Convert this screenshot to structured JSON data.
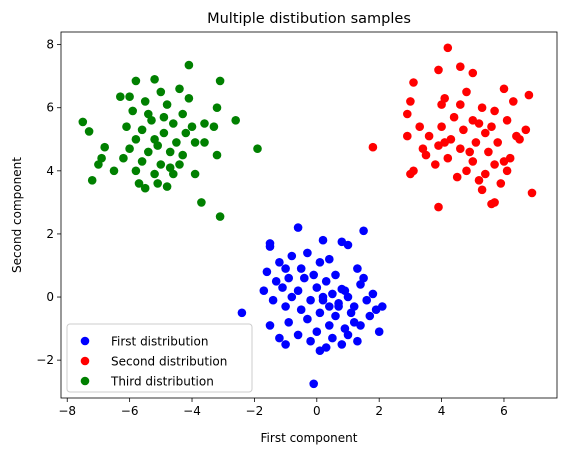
{
  "chart_data": {
    "type": "scatter",
    "title": "Multiple distibution samples",
    "xlabel": "First component",
    "ylabel": "Second component",
    "xlim": [
      -8.2,
      7.7
    ],
    "ylim": [
      -3.2,
      8.4
    ],
    "xticks": [
      -8,
      -6,
      -4,
      -2,
      0,
      2,
      4,
      6
    ],
    "yticks": [
      -2,
      0,
      2,
      4,
      6,
      8
    ],
    "grid": false,
    "legend_position": "lower-left",
    "series": [
      {
        "name": "First distribution",
        "color": "#0000ff",
        "points": [
          [
            -0.1,
            -2.75
          ],
          [
            -1.5,
            1.7
          ],
          [
            -1.5,
            1.6
          ],
          [
            -0.6,
            2.2
          ],
          [
            0.2,
            1.8
          ],
          [
            0.8,
            1.75
          ],
          [
            1.0,
            1.65
          ],
          [
            1.5,
            2.1
          ],
          [
            -1.2,
            1.1
          ],
          [
            -0.8,
            1.3
          ],
          [
            -0.3,
            1.4
          ],
          [
            0.4,
            1.2
          ],
          [
            1.3,
            0.9
          ],
          [
            -1.0,
            0.9
          ],
          [
            -0.5,
            0.9
          ],
          [
            0.1,
            1.1
          ],
          [
            0.6,
            0.7
          ],
          [
            1.4,
            0.4
          ],
          [
            -1.3,
            0.5
          ],
          [
            -0.9,
            0.6
          ],
          [
            -0.4,
            0.6
          ],
          [
            0.3,
            0.5
          ],
          [
            0.9,
            0.2
          ],
          [
            1.8,
            0.1
          ],
          [
            -1.7,
            0.2
          ],
          [
            -1.1,
            0.3
          ],
          [
            -0.6,
            0.2
          ],
          [
            0.0,
            0.3
          ],
          [
            0.5,
            0.1
          ],
          [
            1.0,
            0.0
          ],
          [
            1.6,
            -0.1
          ],
          [
            2.1,
            -0.3
          ],
          [
            -1.4,
            -0.1
          ],
          [
            -0.8,
            0.0
          ],
          [
            -0.2,
            -0.1
          ],
          [
            0.2,
            -0.1
          ],
          [
            0.7,
            -0.2
          ],
          [
            1.2,
            -0.3
          ],
          [
            1.9,
            -0.4
          ],
          [
            -2.4,
            -0.5
          ],
          [
            -1.0,
            -0.3
          ],
          [
            -0.5,
            -0.4
          ],
          [
            0.1,
            -0.5
          ],
          [
            0.6,
            -0.6
          ],
          [
            1.1,
            -0.5
          ],
          [
            1.7,
            -0.6
          ],
          [
            -1.5,
            -0.9
          ],
          [
            -0.9,
            -0.8
          ],
          [
            -0.3,
            -0.7
          ],
          [
            0.4,
            -0.9
          ],
          [
            0.9,
            -1.0
          ],
          [
            1.4,
            -0.9
          ],
          [
            2.0,
            -1.1
          ],
          [
            -1.2,
            -1.3
          ],
          [
            -0.6,
            -1.2
          ],
          [
            0.0,
            -1.1
          ],
          [
            0.5,
            -1.3
          ],
          [
            1.0,
            -1.2
          ],
          [
            -1.0,
            -1.5
          ],
          [
            -0.2,
            -1.4
          ],
          [
            0.3,
            -1.6
          ],
          [
            0.8,
            -1.5
          ],
          [
            1.3,
            -1.4
          ],
          [
            0.1,
            -1.7
          ],
          [
            0.7,
            -0.3
          ],
          [
            1.5,
            0.6
          ],
          [
            0.8,
            0.25
          ],
          [
            -0.1,
            0.7
          ],
          [
            -1.6,
            0.8
          ],
          [
            1.2,
            -0.8
          ],
          [
            0.2,
            0.0
          ],
          [
            0.4,
            -0.3
          ]
        ]
      },
      {
        "name": "Second distribution",
        "color": "#ff0000",
        "points": [
          [
            4.2,
            7.9
          ],
          [
            4.6,
            7.3
          ],
          [
            5.0,
            7.1
          ],
          [
            3.9,
            7.2
          ],
          [
            3.1,
            6.8
          ],
          [
            4.8,
            6.5
          ],
          [
            6.0,
            6.6
          ],
          [
            6.8,
            6.4
          ],
          [
            6.3,
            6.2
          ],
          [
            3.0,
            6.2
          ],
          [
            4.1,
            6.3
          ],
          [
            5.3,
            6.0
          ],
          [
            5.7,
            5.9
          ],
          [
            2.9,
            5.8
          ],
          [
            4.4,
            5.7
          ],
          [
            5.0,
            5.6
          ],
          [
            6.1,
            5.6
          ],
          [
            6.7,
            5.3
          ],
          [
            3.3,
            5.4
          ],
          [
            4.0,
            5.4
          ],
          [
            4.7,
            5.3
          ],
          [
            5.4,
            5.2
          ],
          [
            6.4,
            5.1
          ],
          [
            3.6,
            5.1
          ],
          [
            4.3,
            5.0
          ],
          [
            5.1,
            4.9
          ],
          [
            5.8,
            4.9
          ],
          [
            2.9,
            5.1
          ],
          [
            3.9,
            4.8
          ],
          [
            4.6,
            4.7
          ],
          [
            5.5,
            4.6
          ],
          [
            6.2,
            4.4
          ],
          [
            1.8,
            4.75
          ],
          [
            3.5,
            4.5
          ],
          [
            4.2,
            4.4
          ],
          [
            5.0,
            4.3
          ],
          [
            5.7,
            4.2
          ],
          [
            3.8,
            4.2
          ],
          [
            4.8,
            4.0
          ],
          [
            5.4,
            3.9
          ],
          [
            6.1,
            4.0
          ],
          [
            3.1,
            4.0
          ],
          [
            3.0,
            3.9
          ],
          [
            4.5,
            3.8
          ],
          [
            5.2,
            3.7
          ],
          [
            5.9,
            3.6
          ],
          [
            5.3,
            3.4
          ],
          [
            6.9,
            3.3
          ],
          [
            5.7,
            3.0
          ],
          [
            5.6,
            2.95
          ],
          [
            3.9,
            2.85
          ],
          [
            4.0,
            6.1
          ],
          [
            5.6,
            5.4
          ],
          [
            4.9,
            4.6
          ],
          [
            6.0,
            4.3
          ],
          [
            4.1,
            4.9
          ],
          [
            5.2,
            5.5
          ],
          [
            3.4,
            4.7
          ],
          [
            6.5,
            5.0
          ],
          [
            4.6,
            6.1
          ]
        ]
      },
      {
        "name": "Third distribution",
        "color": "#008000",
        "points": [
          [
            -4.1,
            7.35
          ],
          [
            -3.1,
            6.85
          ],
          [
            -5.8,
            6.85
          ],
          [
            -5.2,
            6.9
          ],
          [
            -4.4,
            6.6
          ],
          [
            -5.0,
            6.5
          ],
          [
            -6.0,
            6.35
          ],
          [
            -6.3,
            6.35
          ],
          [
            -4.1,
            6.3
          ],
          [
            -5.5,
            6.2
          ],
          [
            -4.8,
            6.1
          ],
          [
            -3.2,
            6.0
          ],
          [
            -5.9,
            5.9
          ],
          [
            -4.3,
            5.8
          ],
          [
            -2.6,
            5.6
          ],
          [
            -7.5,
            5.55
          ],
          [
            -5.3,
            5.6
          ],
          [
            -4.6,
            5.5
          ],
          [
            -3.6,
            5.5
          ],
          [
            -3.3,
            5.4
          ],
          [
            -7.3,
            5.25
          ],
          [
            -5.6,
            5.3
          ],
          [
            -4.9,
            5.2
          ],
          [
            -4.2,
            5.2
          ],
          [
            -5.8,
            5.0
          ],
          [
            -5.2,
            5.0
          ],
          [
            -4.5,
            4.9
          ],
          [
            -3.9,
            4.9
          ],
          [
            -6.8,
            4.75
          ],
          [
            -6.0,
            4.7
          ],
          [
            -5.4,
            4.6
          ],
          [
            -4.7,
            4.6
          ],
          [
            -3.2,
            4.5
          ],
          [
            -1.9,
            4.7
          ],
          [
            -6.9,
            4.4
          ],
          [
            -6.2,
            4.4
          ],
          [
            -5.6,
            4.3
          ],
          [
            -5.0,
            4.2
          ],
          [
            -4.4,
            4.2
          ],
          [
            -7.0,
            4.2
          ],
          [
            -5.8,
            4.0
          ],
          [
            -5.2,
            3.9
          ],
          [
            -4.6,
            3.9
          ],
          [
            -3.9,
            3.9
          ],
          [
            -6.5,
            4.0
          ],
          [
            -7.2,
            3.7
          ],
          [
            -5.7,
            3.6
          ],
          [
            -5.1,
            3.6
          ],
          [
            -4.8,
            3.5
          ],
          [
            -5.5,
            3.45
          ],
          [
            -3.7,
            3.0
          ],
          [
            -3.1,
            2.55
          ],
          [
            -4.3,
            4.5
          ],
          [
            -5.1,
            4.8
          ],
          [
            -4.0,
            5.4
          ],
          [
            -5.4,
            5.8
          ],
          [
            -4.7,
            4.1
          ],
          [
            -3.6,
            4.9
          ],
          [
            -6.1,
            5.4
          ],
          [
            -4.9,
            5.7
          ]
        ]
      }
    ]
  }
}
